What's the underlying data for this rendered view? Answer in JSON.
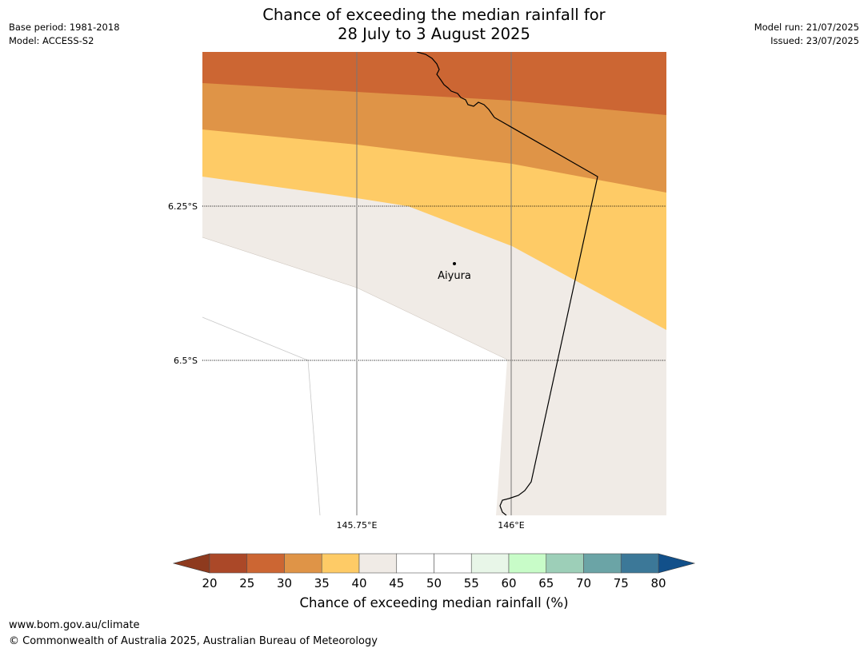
{
  "title": {
    "line1": "Chance of exceeding the median rainfall for",
    "line2": "28 July to 3 August 2025"
  },
  "meta_left": {
    "base_period": "Base period: 1981-2018",
    "model": "Model: ACCESS-S2"
  },
  "meta_right": {
    "model_run": "Model run: 21/07/2025",
    "issued": "Issued: 23/07/2025"
  },
  "map": {
    "place": "Aiyura",
    "lat_labels": [
      "6.25°S",
      "6.5°S"
    ],
    "lon_labels": [
      "145.75°E",
      "146°E"
    ],
    "bands": [
      {
        "name": "30-35",
        "color": "#cc6633"
      },
      {
        "name": "35-40",
        "color": "#df9447"
      },
      {
        "name": "40-45",
        "color": "#fecb66"
      },
      {
        "name": "45-50",
        "color": "#f0ebe6"
      },
      {
        "name": "50-55",
        "color": "#ffffff"
      }
    ]
  },
  "colorbar": {
    "label": "Chance of exceeding median rainfall (%)",
    "ticks": [
      "20",
      "25",
      "30",
      "35",
      "40",
      "45",
      "50",
      "55",
      "60",
      "65",
      "70",
      "75",
      "80"
    ],
    "under_color": "#8e3a1e",
    "over_color": "#12508a",
    "colors": [
      "#ab4828",
      "#cc6633",
      "#df9447",
      "#fecb66",
      "#f0ebe6",
      "#ffffff",
      "#ffffff",
      "#e8f6e8",
      "#c8fcc8",
      "#9dcfb8",
      "#6ba4a6",
      "#3c7898"
    ]
  },
  "footer": {
    "url": "www.bom.gov.au/climate",
    "copyright": "© Commonwealth of Australia 2025, Australian Bureau of Meteorology"
  }
}
